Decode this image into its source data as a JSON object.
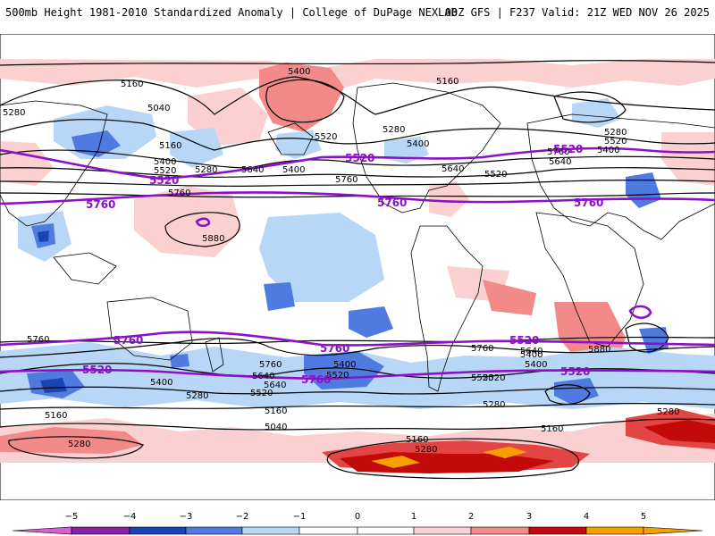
{
  "header": {
    "left": "500mb Height 1981-2010 Standardized Anomaly | College of DuPage NEXLAB",
    "right": "00Z GFS | F237 Valid: 21Z WED NOV 26 2025"
  },
  "colors": {
    "neg5": "#d95fd8",
    "neg4": "#8a1fa8",
    "neg3": "#1845b4",
    "neg2": "#4f7be0",
    "neg1": "#b8d6f6",
    "pos1": "#fbd0d0",
    "pos2": "#f28a8a",
    "pos3": "#e34545",
    "pos4": "#c20a0a",
    "pos5": "#f5a000",
    "highlight": "#8c10c8",
    "contour": "#000000",
    "land": "#000000"
  },
  "map": {
    "contour_labels": [
      "5280",
      "5160",
      "5040",
      "5400",
      "5520",
      "5160",
      "5400",
      "5520",
      "5280",
      "5640",
      "5400",
      "5760",
      "5880",
      "5760",
      "5520",
      "5640",
      "5160",
      "5400",
      "5280",
      "5520",
      "5640",
      "5760",
      "5280",
      "5400",
      "5760",
      "5640",
      "5520",
      "5400",
      "5280",
      "5160",
      "5040",
      "5160",
      "5280",
      "5400",
      "5520",
      "5640",
      "5760",
      "5880",
      "5760",
      "5640",
      "5400",
      "5520",
      "5280",
      "5160",
      "5280",
      "5280",
      "5160",
      "5400",
      "5520"
    ],
    "highlight_labels": [
      "5520",
      "5520",
      "5760",
      "5760",
      "5520",
      "5760",
      "5760",
      "5760",
      "5520",
      "5520",
      "5760",
      "5520"
    ]
  },
  "colorbar": {
    "ticks": [
      "−5",
      "−4",
      "−3",
      "−2",
      "−1",
      "0",
      "1",
      "2",
      "3",
      "4",
      "5"
    ],
    "palette": [
      "#d95fd8",
      "#8a1fa8",
      "#1845b4",
      "#4f7be0",
      "#b8d6f6",
      "#ffffff",
      "#fbd0d0",
      "#f28a8a",
      "#e34545",
      "#c20a0a",
      "#f5a000"
    ]
  }
}
